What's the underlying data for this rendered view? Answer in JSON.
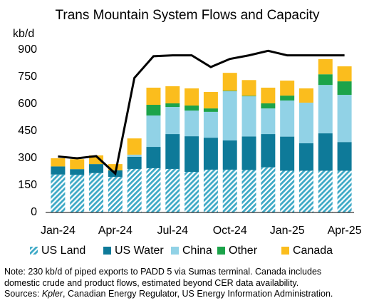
{
  "chart_data": {
    "type": "bar",
    "stacked": true,
    "title": "Trans Mountain System Flows and Capacity",
    "y_label": "kb/d",
    "categories": [
      "Jan-24",
      null,
      null,
      "Apr-24",
      null,
      null,
      "Jul-24",
      null,
      null,
      "Oct-24",
      null,
      null,
      "Jan-25",
      null,
      null,
      "Apr-25"
    ],
    "series": [
      {
        "name": "US Land",
        "color": "#3ea9c6",
        "hatch": true,
        "values": [
          210,
          208,
          218,
          197,
          241,
          245,
          241,
          225,
          237,
          237,
          235,
          250,
          231,
          231,
          231,
          231
        ]
      },
      {
        "name": "US Water",
        "color": "#0e7a99",
        "values": [
          45,
          32,
          50,
          36,
          67,
          118,
          193,
          197,
          177,
          162,
          186,
          184,
          189,
          152,
          207,
          159
        ]
      },
      {
        "name": "China",
        "color": "#91d2e6",
        "values": [
          0,
          0,
          0,
          0,
          12,
          174,
          150,
          142,
          143,
          272,
          222,
          142,
          200,
          225,
          268,
          261
        ]
      },
      {
        "name": "Other",
        "color": "#1ca34a",
        "values": [
          0,
          0,
          0,
          0,
          0,
          59,
          20,
          28,
          19,
          3,
          3,
          28,
          27,
          0,
          59,
          75
        ]
      },
      {
        "name": "Canada",
        "color": "#fbbd1d",
        "values": [
          45,
          55,
          48,
          35,
          90,
          95,
          95,
          95,
          91,
          99,
          87,
          87,
          83,
          79,
          84,
          83
        ]
      }
    ],
    "line": {
      "color": "#000000",
      "values": [
        310,
        300,
        312,
        215,
        745,
        865,
        870,
        870,
        805,
        850,
        870,
        895,
        870,
        870,
        870,
        870
      ]
    },
    "ylim": [
      0,
      900
    ],
    "yticks": [
      0,
      150,
      300,
      450,
      600,
      750,
      900
    ],
    "grid": false,
    "notes": [
      "Note: 230 kb/d of piped exports to PADD 5 via Sumas terminal. Canada includes",
      "domestic crude and product flows, estimated beyond CER data availability."
    ],
    "sources": {
      "lead": "Sources:",
      "italic": "Kpler",
      "rest": ", Canadian Energy Regulator, US Energy Information Administration."
    }
  }
}
